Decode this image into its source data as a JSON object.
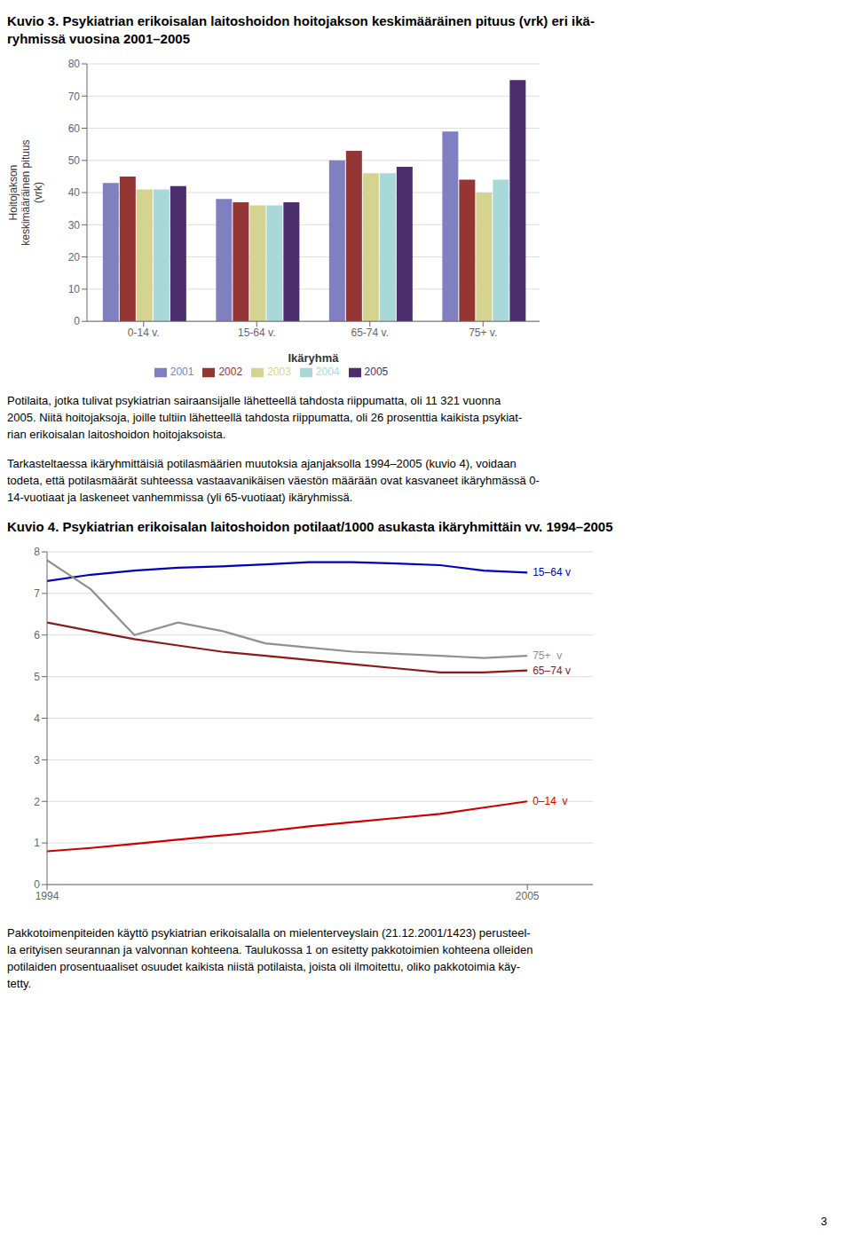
{
  "chart_data": [
    {
      "type": "bar",
      "title": [
        "Kuvio 3. Psykiatrian erikoisalan laitoshoidon hoitojakson keskimääräinen pituus (vrk) eri ikä-",
        "ryhmissä vuosina 2001–2005"
      ],
      "categories": [
        "0-14 v.",
        "15-64 v.",
        "65-74 v.",
        "75+ v."
      ],
      "xlabel": "Ikäryhmä",
      "ylabel": "Hoitojakson\nkeskimääräinen pituus\n(vrk)",
      "series": [
        {
          "name": "2001",
          "color": "#8080C0",
          "values": [
            43,
            38,
            50,
            59
          ]
        },
        {
          "name": "2002",
          "color": "#943634",
          "values": [
            45,
            37,
            53,
            44
          ]
        },
        {
          "name": "2003",
          "color": "#D4D490",
          "values": [
            41,
            36,
            46,
            40
          ]
        },
        {
          "name": "2004",
          "color": "#A8D8D8",
          "values": [
            41,
            36,
            46,
            44
          ]
        },
        {
          "name": "2005",
          "color": "#4B2E6B",
          "values": [
            42,
            37,
            48,
            75
          ]
        }
      ],
      "ylim": [
        0,
        80
      ],
      "yticks": [
        0,
        10,
        20,
        30,
        40,
        50,
        60,
        70,
        80
      ],
      "grid": true,
      "legend": "bottom",
      "annotations": [
        "Potilaita, jotka tulivat psykiatrian sairaansijalle lähetteellä tahdosta riippumatta, oli 11 321 vuonna\n2005. Niitä hoitojaksoja, joille tultiin lähetteellä tahdosta riippumatta, oli 26 prosenttia kaikista psykiat-\nrian erikoisalan laitoshoidon hoitojaksoista.",
        "Tarkasteltaessa ikäryhmittäisiä potilasmäärien muutoksia ajanjaksolla 1994–2005 (kuvio 4), voidaan\ntodeta, että potilasmäärät suhteessa vastaavanikäisen väestön määrään ovat kasvaneet ikäryhmässä 0-\n14-vuotiaat ja laskeneet vanhemmissa (yli 65-vuotiaat) ikäryhmissä."
      ]
    },
    {
      "type": "line",
      "title": [
        "Kuvio 4. Psykiatrian erikoisalan laitoshoidon potilaat/1000 asukasta ikäryhmittäin vv. 1994–2005"
      ],
      "x": [
        1994,
        1995,
        1996,
        1997,
        1998,
        1999,
        2000,
        2001,
        2002,
        2003,
        2004,
        2005
      ],
      "xlim": [
        1994,
        2006.5
      ],
      "xticks": [
        1994,
        2005
      ],
      "ylim": [
        0,
        8
      ],
      "yticks": [
        0,
        1,
        2,
        3,
        4,
        5,
        6,
        7,
        8
      ],
      "grid": true,
      "series": [
        {
          "name": "15–64 v",
          "color": "#0000BB",
          "values": [
            7.3,
            7.45,
            7.55,
            7.62,
            7.65,
            7.7,
            7.75,
            7.75,
            7.72,
            7.68,
            7.55,
            7.5
          ]
        },
        {
          "name": "75+  v",
          "color": "#909090",
          "values": [
            7.8,
            7.1,
            6.0,
            6.3,
            6.1,
            5.8,
            5.7,
            5.6,
            5.55,
            5.5,
            5.45,
            5.5
          ]
        },
        {
          "name": "65–74 v",
          "color": "#8B1A1A",
          "values": [
            6.3,
            6.1,
            5.9,
            5.75,
            5.6,
            5.5,
            5.4,
            5.3,
            5.2,
            5.1,
            5.1,
            5.15
          ]
        },
        {
          "name": "0–14  v",
          "color": "#CC0000",
          "values": [
            0.8,
            0.88,
            0.98,
            1.08,
            1.18,
            1.28,
            1.4,
            1.5,
            1.6,
            1.7,
            1.85,
            2.0
          ]
        }
      ],
      "annotations": [
        "Pakkotoimenpiteiden käyttö psykiatrian erikoisalalla on mielenterveyslain (21.12.2001/1423) perusteel-\nla erityisen seurannan ja valvonnan kohteena. Taulukossa 1 on esitetty pakkotoimien kohteena olleiden\npotilaiden prosentuaaliset osuudet kaikista niistä potilaista, joista oli ilmoitettu, oliko pakkotoimia käy-\ntetty."
      ]
    }
  ],
  "page_number": "3"
}
